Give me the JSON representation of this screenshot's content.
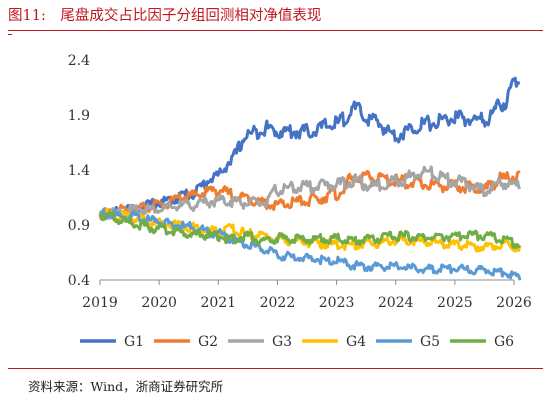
{
  "figure": {
    "title": "图11:　尾盘成交占比因子分组回测相对净值表现",
    "source": "资料来源：Wind，浙商证券研究所"
  },
  "chart_data": {
    "type": "line",
    "title": "",
    "xlabel": "",
    "ylabel": "",
    "x_ticks": [
      "2019",
      "2020",
      "2021",
      "2022",
      "2023",
      "2024",
      "2025",
      "2026"
    ],
    "y_ticks": [
      "0.4",
      "0.9",
      "1.4",
      "1.9",
      "2.4"
    ],
    "xlim": [
      2019,
      2026
    ],
    "ylim": [
      0.4,
      2.4
    ],
    "grid": false,
    "legend": "bottom",
    "x": [
      2019.0,
      2019.5,
      2020.0,
      2020.5,
      2021.0,
      2021.2,
      2021.5,
      2021.8,
      2022.0,
      2022.5,
      2023.0,
      2023.3,
      2023.6,
      2024.0,
      2024.5,
      2025.0,
      2025.5,
      2025.8,
      2026.1
    ],
    "series": [
      {
        "name": "G1",
        "color": "#4472C4",
        "values": [
          1.0,
          1.03,
          1.1,
          1.18,
          1.35,
          1.48,
          1.72,
          1.78,
          1.75,
          1.75,
          1.82,
          1.95,
          1.85,
          1.72,
          1.82,
          1.87,
          1.85,
          2.0,
          2.25
        ]
      },
      {
        "name": "G2",
        "color": "#ED7D31",
        "values": [
          1.0,
          1.04,
          1.08,
          1.16,
          1.22,
          1.18,
          1.14,
          1.1,
          1.08,
          1.12,
          1.18,
          1.33,
          1.33,
          1.3,
          1.27,
          1.25,
          1.23,
          1.32,
          1.35
        ]
      },
      {
        "name": "G3",
        "color": "#A5A5A5",
        "values": [
          1.0,
          1.03,
          1.05,
          1.08,
          1.12,
          1.12,
          1.1,
          1.1,
          1.22,
          1.25,
          1.27,
          1.3,
          1.25,
          1.3,
          1.38,
          1.3,
          1.22,
          1.28,
          1.25
        ]
      },
      {
        "name": "G4",
        "color": "#FFC000",
        "values": [
          1.0,
          0.97,
          0.92,
          0.88,
          0.85,
          0.86,
          0.82,
          0.8,
          0.77,
          0.74,
          0.72,
          0.72,
          0.73,
          0.76,
          0.75,
          0.72,
          0.7,
          0.73,
          0.7
        ]
      },
      {
        "name": "G5",
        "color": "#5B9BD5",
        "values": [
          1.0,
          0.97,
          0.93,
          0.88,
          0.82,
          0.78,
          0.72,
          0.68,
          0.62,
          0.6,
          0.57,
          0.53,
          0.52,
          0.52,
          0.5,
          0.5,
          0.49,
          0.47,
          0.43
        ]
      },
      {
        "name": "G6",
        "color": "#70AD47",
        "values": [
          1.0,
          0.92,
          0.86,
          0.82,
          0.8,
          0.77,
          0.8,
          0.75,
          0.78,
          0.77,
          0.78,
          0.76,
          0.77,
          0.8,
          0.79,
          0.8,
          0.81,
          0.78,
          0.72
        ]
      }
    ]
  }
}
